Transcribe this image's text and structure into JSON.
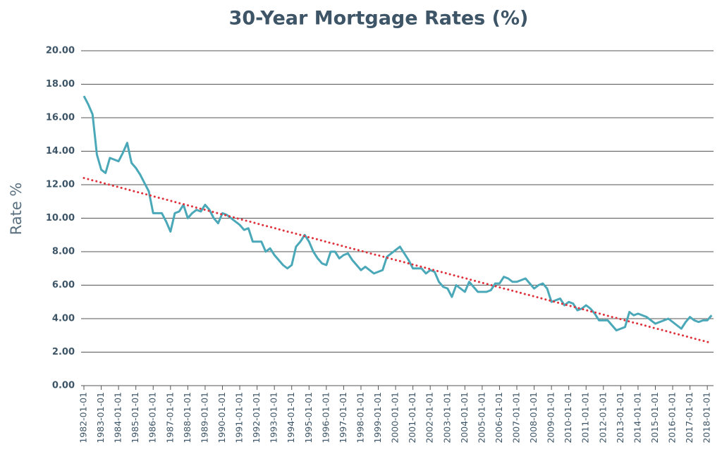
{
  "chart_data": {
    "type": "line",
    "title": "30-Year Mortgage Rates (%)",
    "y_label": "Rate %",
    "categories": [
      "1982-01-01",
      null,
      null,
      null,
      "1983-01-01",
      null,
      null,
      null,
      "1984-01-01",
      null,
      null,
      null,
      "1985-01-01",
      null,
      null,
      null,
      "1986-01-01",
      null,
      null,
      null,
      "1987-01-01",
      null,
      null,
      null,
      "1988-01-01",
      null,
      null,
      null,
      "1989-01-01",
      null,
      null,
      null,
      "1990-01-01",
      null,
      null,
      null,
      "1991-01-01",
      null,
      null,
      null,
      "1992-01-01",
      null,
      null,
      null,
      "1993-01-01",
      null,
      null,
      null,
      "1994-01-01",
      null,
      null,
      null,
      "1995-01-01",
      null,
      null,
      null,
      "1996-01-01",
      null,
      null,
      null,
      "1997-01-01",
      null,
      null,
      null,
      "1998-01-01",
      null,
      null,
      null,
      "1999-01-01",
      null,
      null,
      null,
      "2000-01-01",
      null,
      null,
      null,
      "2001-01-01",
      null,
      null,
      null,
      "2002-01-01",
      null,
      null,
      null,
      "2003-01-01",
      null,
      null,
      null,
      "2004-01-01",
      null,
      null,
      null,
      "2005-01-01",
      null,
      null,
      null,
      "2006-01-01",
      null,
      null,
      null,
      "2007-01-01",
      null,
      null,
      null,
      "2008-01-01",
      null,
      null,
      null,
      "2009-01-01",
      null,
      null,
      null,
      "2010-01-01",
      null,
      null,
      null,
      "2011-01-01",
      null,
      null,
      null,
      "2012-01-01",
      null,
      null,
      null,
      "2013-01-01",
      null,
      null,
      null,
      "2014-01-01",
      null,
      null,
      null,
      "2015-01-01",
      null,
      null,
      null,
      "2016-01-01",
      null,
      null,
      null,
      "2017-01-01",
      null,
      null,
      null,
      "2018-01-01",
      null
    ],
    "series": [
      {
        "color": "#4aa8b8",
        "style": "solid",
        "values": [
          17.3,
          16.8,
          16.2,
          13.8,
          12.9,
          12.7,
          13.6,
          13.5,
          13.4,
          13.9,
          14.5,
          13.3,
          13.0,
          12.6,
          12.1,
          11.6,
          10.3,
          10.3,
          10.3,
          9.8,
          9.2,
          10.3,
          10.4,
          10.8,
          10.0,
          10.3,
          10.5,
          10.4,
          10.8,
          10.5,
          10.0,
          9.7,
          10.3,
          10.2,
          10.0,
          9.8,
          9.6,
          9.3,
          9.4,
          8.6,
          8.6,
          8.6,
          8.0,
          8.2,
          7.8,
          7.5,
          7.2,
          7.0,
          7.2,
          8.3,
          8.6,
          9.0,
          8.6,
          8.0,
          7.6,
          7.3,
          7.2,
          8.0,
          8.0,
          7.6,
          7.8,
          7.9,
          7.5,
          7.2,
          6.9,
          7.1,
          6.9,
          6.7,
          6.8,
          6.9,
          7.7,
          7.9,
          8.1,
          8.3,
          7.9,
          7.5,
          7.0,
          7.0,
          7.0,
          6.7,
          6.9,
          6.8,
          6.2,
          5.9,
          5.8,
          5.3,
          6.0,
          5.8,
          5.6,
          6.2,
          5.9,
          5.6,
          5.6,
          5.6,
          5.7,
          6.1,
          6.1,
          6.5,
          6.4,
          6.2,
          6.2,
          6.3,
          6.4,
          6.1,
          5.8,
          6.0,
          6.1,
          5.8,
          5.0,
          5.1,
          5.2,
          4.8,
          5.0,
          4.9,
          4.5,
          4.6,
          4.8,
          4.6,
          4.3,
          3.9,
          3.9,
          3.9,
          3.6,
          3.3,
          3.4,
          3.5,
          4.4,
          4.2,
          4.3,
          4.2,
          4.1,
          3.9,
          3.7,
          3.8,
          3.9,
          4.0,
          3.8,
          3.6,
          3.4,
          3.8,
          4.1,
          3.9,
          3.8,
          3.9,
          3.9,
          4.2
        ]
      },
      {
        "color": "#e0323c",
        "style": "dotted",
        "values": [
          12.4,
          12.33,
          12.26,
          12.2,
          12.13,
          12.06,
          11.99,
          11.92,
          11.86,
          11.79,
          11.72,
          11.65,
          11.58,
          11.52,
          11.45,
          11.38,
          11.31,
          11.24,
          11.18,
          11.11,
          11.04,
          10.97,
          10.9,
          10.84,
          10.77,
          10.7,
          10.63,
          10.56,
          10.5,
          10.43,
          10.36,
          10.29,
          10.22,
          10.16,
          10.09,
          10.02,
          9.95,
          9.88,
          9.82,
          9.75,
          9.68,
          9.61,
          9.54,
          9.48,
          9.41,
          9.34,
          9.27,
          9.2,
          9.14,
          9.07,
          9.0,
          8.93,
          8.86,
          8.8,
          8.73,
          8.66,
          8.59,
          8.52,
          8.46,
          8.39,
          8.32,
          8.25,
          8.18,
          8.12,
          8.05,
          7.98,
          7.91,
          7.84,
          7.78,
          7.71,
          7.64,
          7.57,
          7.5,
          7.44,
          7.37,
          7.3,
          7.23,
          7.16,
          7.1,
          7.03,
          6.96,
          6.89,
          6.82,
          6.76,
          6.69,
          6.62,
          6.55,
          6.48,
          6.42,
          6.35,
          6.28,
          6.21,
          6.14,
          6.08,
          6.01,
          5.94,
          5.87,
          5.8,
          5.74,
          5.67,
          5.6,
          5.53,
          5.46,
          5.4,
          5.33,
          5.26,
          5.19,
          5.12,
          5.06,
          4.99,
          4.92,
          4.85,
          4.78,
          4.72,
          4.65,
          4.58,
          4.51,
          4.44,
          4.38,
          4.31,
          4.24,
          4.17,
          4.1,
          4.04,
          3.97,
          3.9,
          3.83,
          3.76,
          3.7,
          3.63,
          3.56,
          3.49,
          3.42,
          3.36,
          3.29,
          3.22,
          3.15,
          3.08,
          3.02,
          2.95,
          2.88,
          2.81,
          2.74,
          2.68,
          2.61,
          2.54
        ]
      }
    ],
    "ylim": [
      0,
      20
    ],
    "yticks": [
      {
        "value": 0,
        "label": "0.00"
      },
      {
        "value": 2,
        "label": "2.00"
      },
      {
        "value": 4,
        "label": "4.00"
      },
      {
        "value": 6,
        "label": "6.00"
      },
      {
        "value": 8,
        "label": "8.00"
      },
      {
        "value": 10,
        "label": "10.00"
      },
      {
        "value": 12,
        "label": "12.00"
      },
      {
        "value": 14,
        "label": "14.00"
      },
      {
        "value": 16,
        "label": "16.00"
      },
      {
        "value": 18,
        "label": "18.00"
      },
      {
        "value": 20,
        "label": "20.00"
      }
    ],
    "grid": true
  }
}
